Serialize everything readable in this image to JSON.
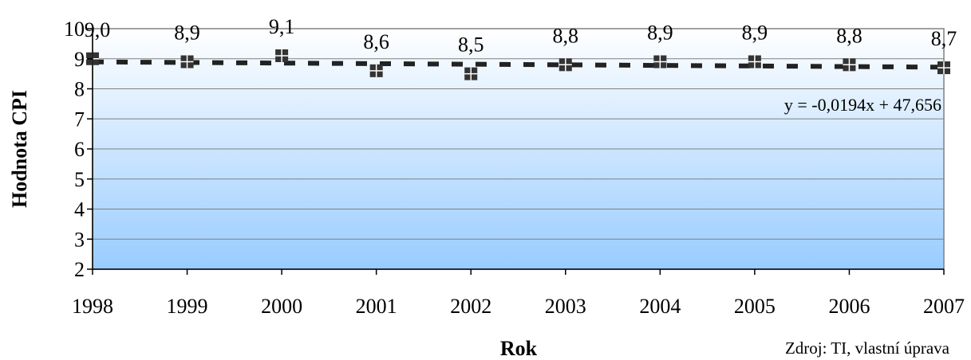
{
  "chart_data": {
    "type": "scatter",
    "x": [
      1998,
      1999,
      2000,
      2001,
      2002,
      2003,
      2004,
      2005,
      2006,
      2007
    ],
    "y": [
      9.0,
      8.9,
      9.1,
      8.6,
      8.5,
      8.8,
      8.9,
      8.9,
      8.8,
      8.7
    ],
    "data_labels": [
      "9,0",
      "8,9",
      "9,1",
      "8,6",
      "8,5",
      "8,8",
      "8,9",
      "8,9",
      "8,8",
      "8,7"
    ],
    "x_tick_labels": [
      "1998",
      "1999",
      "2000",
      "2001",
      "2002",
      "2003",
      "2004",
      "2005",
      "2006",
      "2007"
    ],
    "y_tick_labels": [
      "2",
      "3",
      "4",
      "5",
      "6",
      "7",
      "8",
      "9",
      "10"
    ],
    "xlabel": "Rok",
    "ylabel": "Hodnota CPI",
    "ylim": [
      2,
      10
    ],
    "trendline": {
      "slope": -0.0194,
      "intercept": 47.656,
      "equation_label": "y = -0,0194x + 47,656"
    },
    "grid": true,
    "legend": "none",
    "source_note": "Zdroj: TI, vlastní úprava",
    "colors": {
      "marker": "#333333",
      "trendline": "#222222",
      "background_top": "#ffffff",
      "background_bottom": "#99ccff"
    }
  }
}
